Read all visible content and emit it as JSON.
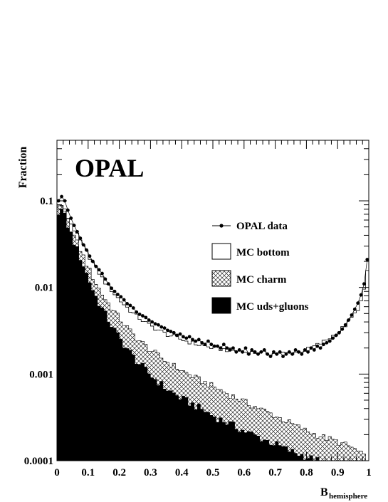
{
  "chart_data": {
    "type": "histogram",
    "brand_label": "OPAL",
    "ylabel": "Fraction",
    "xlabel_main": "B",
    "xlabel_sub": "hemisphere",
    "xlim": [
      0,
      1
    ],
    "ylim": [
      0.0001,
      0.5
    ],
    "y_scale": "log",
    "x_ticks": [
      "0",
      "0.1",
      "0.2",
      "0.3",
      "0.4",
      "0.5",
      "0.6",
      "0.7",
      "0.8",
      "0.9",
      "1"
    ],
    "x_tick_values": [
      0,
      0.1,
      0.2,
      0.3,
      0.4,
      0.5,
      0.6,
      0.7,
      0.8,
      0.9,
      1.0
    ],
    "y_ticks": [
      "0.1",
      "0.01",
      "0.001",
      "0.0001"
    ],
    "y_tick_values": [
      0.1,
      0.01,
      0.001,
      0.0001
    ],
    "legend_position": "right",
    "bin_width": 0.01,
    "series": [
      {
        "name": "MC uds+gluons",
        "style": "solid-black-fill",
        "points": [
          [
            0.0,
            0.07
          ],
          [
            0.01,
            0.082
          ],
          [
            0.02,
            0.075
          ],
          [
            0.03,
            0.058
          ],
          [
            0.05,
            0.037
          ],
          [
            0.08,
            0.02
          ],
          [
            0.1,
            0.013
          ],
          [
            0.12,
            0.0085
          ],
          [
            0.15,
            0.0052
          ],
          [
            0.2,
            0.0026
          ],
          [
            0.25,
            0.0015
          ],
          [
            0.3,
            0.00097
          ],
          [
            0.35,
            0.00068
          ],
          [
            0.4,
            0.00052
          ],
          [
            0.45,
            0.00042
          ],
          [
            0.5,
            0.00033
          ],
          [
            0.55,
            0.00027
          ],
          [
            0.6,
            0.00022
          ],
          [
            0.65,
            0.000185
          ],
          [
            0.7,
            0.000155
          ],
          [
            0.75,
            0.000128
          ],
          [
            0.8,
            0.000112
          ],
          [
            0.83,
            0.0001
          ]
        ]
      },
      {
        "name": "MC charm",
        "style": "cross-hatch",
        "points": [
          [
            0.0,
            0.074
          ],
          [
            0.01,
            0.088
          ],
          [
            0.02,
            0.08
          ],
          [
            0.03,
            0.064
          ],
          [
            0.05,
            0.043
          ],
          [
            0.08,
            0.025
          ],
          [
            0.1,
            0.017
          ],
          [
            0.12,
            0.012
          ],
          [
            0.15,
            0.0078
          ],
          [
            0.2,
            0.0044
          ],
          [
            0.25,
            0.0027
          ],
          [
            0.3,
            0.0019
          ],
          [
            0.35,
            0.0014
          ],
          [
            0.4,
            0.0011
          ],
          [
            0.45,
            0.00088
          ],
          [
            0.5,
            0.00072
          ],
          [
            0.55,
            0.00059
          ],
          [
            0.6,
            0.00048
          ],
          [
            0.65,
            0.0004
          ],
          [
            0.7,
            0.00033
          ],
          [
            0.75,
            0.00027
          ],
          [
            0.8,
            0.00022
          ],
          [
            0.85,
            0.00019
          ],
          [
            0.9,
            0.000165
          ],
          [
            0.95,
            0.00014
          ],
          [
            0.98,
            0.000115
          ],
          [
            1.0,
            0.0001
          ]
        ]
      },
      {
        "name": "MC bottom",
        "style": "open-histogram",
        "points": [
          [
            0.0,
            0.078
          ],
          [
            0.01,
            0.093
          ],
          [
            0.02,
            0.086
          ],
          [
            0.03,
            0.07
          ],
          [
            0.05,
            0.05
          ],
          [
            0.08,
            0.032
          ],
          [
            0.1,
            0.024
          ],
          [
            0.12,
            0.018
          ],
          [
            0.15,
            0.012
          ],
          [
            0.2,
            0.0072
          ],
          [
            0.25,
            0.0048
          ],
          [
            0.3,
            0.0036
          ],
          [
            0.35,
            0.0029
          ],
          [
            0.4,
            0.0025
          ],
          [
            0.45,
            0.0022
          ],
          [
            0.5,
            0.002
          ],
          [
            0.55,
            0.0019
          ],
          [
            0.6,
            0.0018
          ],
          [
            0.65,
            0.00175
          ],
          [
            0.7,
            0.00172
          ],
          [
            0.75,
            0.00175
          ],
          [
            0.8,
            0.0019
          ],
          [
            0.85,
            0.0023
          ],
          [
            0.9,
            0.003
          ],
          [
            0.93,
            0.0038
          ],
          [
            0.96,
            0.0052
          ],
          [
            0.98,
            0.0075
          ],
          [
            0.99,
            0.011
          ],
          [
            1.0,
            0.022
          ]
        ]
      },
      {
        "name": "OPAL data",
        "style": "points",
        "points": [
          [
            0.005,
            0.1
          ],
          [
            0.015,
            0.112
          ],
          [
            0.025,
            0.1
          ],
          [
            0.035,
            0.078
          ],
          [
            0.045,
            0.063
          ],
          [
            0.055,
            0.052
          ],
          [
            0.065,
            0.044
          ],
          [
            0.075,
            0.037
          ],
          [
            0.085,
            0.031
          ],
          [
            0.095,
            0.027
          ],
          [
            0.105,
            0.023
          ],
          [
            0.115,
            0.02
          ],
          [
            0.125,
            0.0175
          ],
          [
            0.135,
            0.016
          ],
          [
            0.145,
            0.0145
          ],
          [
            0.155,
            0.0125
          ],
          [
            0.165,
            0.011
          ],
          [
            0.175,
            0.0098
          ],
          [
            0.185,
            0.009
          ],
          [
            0.195,
            0.0083
          ],
          [
            0.205,
            0.0078
          ],
          [
            0.215,
            0.0072
          ],
          [
            0.225,
            0.0065
          ],
          [
            0.235,
            0.0062
          ],
          [
            0.245,
            0.0058
          ],
          [
            0.255,
            0.0052
          ],
          [
            0.265,
            0.0049
          ],
          [
            0.275,
            0.0047
          ],
          [
            0.285,
            0.0045
          ],
          [
            0.295,
            0.0042
          ],
          [
            0.305,
            0.004
          ],
          [
            0.315,
            0.0038
          ],
          [
            0.325,
            0.0037
          ],
          [
            0.335,
            0.0035
          ],
          [
            0.345,
            0.0034
          ],
          [
            0.355,
            0.0032
          ],
          [
            0.365,
            0.0031
          ],
          [
            0.375,
            0.003
          ],
          [
            0.385,
            0.0028
          ],
          [
            0.395,
            0.0029
          ],
          [
            0.405,
            0.0027
          ],
          [
            0.415,
            0.0026
          ],
          [
            0.425,
            0.0027
          ],
          [
            0.435,
            0.0025
          ],
          [
            0.445,
            0.0024
          ],
          [
            0.455,
            0.0025
          ],
          [
            0.465,
            0.0023
          ],
          [
            0.475,
            0.0022
          ],
          [
            0.485,
            0.0024
          ],
          [
            0.495,
            0.0022
          ],
          [
            0.505,
            0.0021
          ],
          [
            0.515,
            0.0021
          ],
          [
            0.525,
            0.002
          ],
          [
            0.535,
            0.0022
          ],
          [
            0.545,
            0.002
          ],
          [
            0.555,
            0.0019
          ],
          [
            0.565,
            0.002
          ],
          [
            0.575,
            0.0018
          ],
          [
            0.585,
            0.0019
          ],
          [
            0.595,
            0.0018
          ],
          [
            0.605,
            0.002
          ],
          [
            0.615,
            0.0017
          ],
          [
            0.625,
            0.0019
          ],
          [
            0.635,
            0.0018
          ],
          [
            0.645,
            0.0017
          ],
          [
            0.655,
            0.0018
          ],
          [
            0.665,
            0.0019
          ],
          [
            0.675,
            0.0017
          ],
          [
            0.685,
            0.0016
          ],
          [
            0.695,
            0.0018
          ],
          [
            0.705,
            0.0017
          ],
          [
            0.715,
            0.0018
          ],
          [
            0.725,
            0.0016
          ],
          [
            0.735,
            0.0017
          ],
          [
            0.745,
            0.0018
          ],
          [
            0.755,
            0.0017
          ],
          [
            0.765,
            0.0019
          ],
          [
            0.775,
            0.0018
          ],
          [
            0.785,
            0.0017
          ],
          [
            0.795,
            0.0019
          ],
          [
            0.805,
            0.0018
          ],
          [
            0.815,
            0.002
          ],
          [
            0.825,
            0.0019
          ],
          [
            0.835,
            0.0021
          ],
          [
            0.845,
            0.002
          ],
          [
            0.855,
            0.0022
          ],
          [
            0.865,
            0.0023
          ],
          [
            0.875,
            0.0024
          ],
          [
            0.885,
            0.0026
          ],
          [
            0.895,
            0.0028
          ],
          [
            0.905,
            0.003
          ],
          [
            0.915,
            0.0033
          ],
          [
            0.925,
            0.0037
          ],
          [
            0.935,
            0.0042
          ],
          [
            0.945,
            0.0048
          ],
          [
            0.955,
            0.0056
          ],
          [
            0.965,
            0.0066
          ],
          [
            0.975,
            0.0082
          ],
          [
            0.985,
            0.011
          ],
          [
            0.995,
            0.021
          ]
        ]
      }
    ]
  }
}
